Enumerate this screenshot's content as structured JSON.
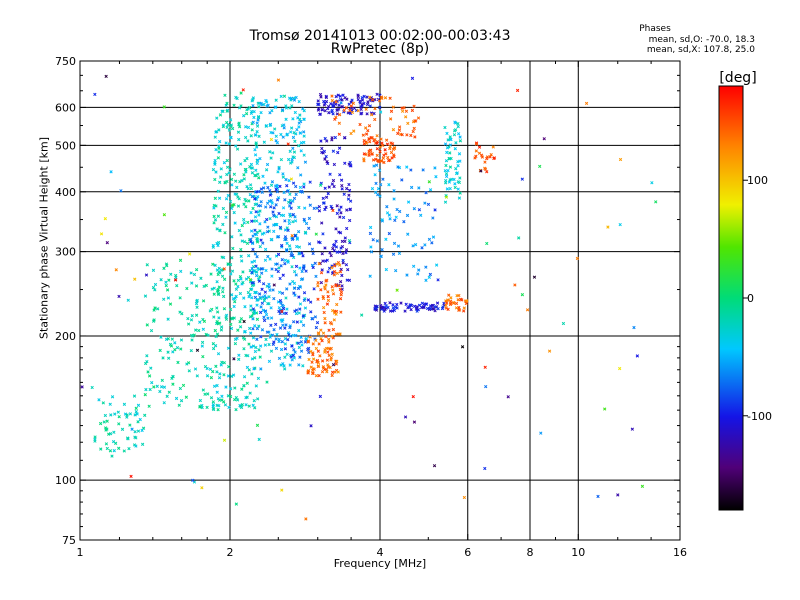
{
  "header": {
    "title": "Tromsø 20141013 00:02:00-00:03:43",
    "subtitle": "RwPretec (8p)"
  },
  "stats": {
    "title": "Phases",
    "line_o": "mean, sd,O: -70.0, 18.3",
    "line_x": "mean, sd,X: 107.8, 25.0"
  },
  "colorbar": {
    "title": "[deg]",
    "ticks": [
      {
        "label": "100",
        "value": 100
      },
      {
        "label": "0",
        "value": 0
      },
      {
        "label": "-100",
        "value": -100
      }
    ],
    "range": [
      -180,
      180
    ]
  },
  "chart_data": {
    "type": "scatter",
    "xlabel": "Frequency [MHz]",
    "ylabel": "Stationary phase Virtual Height [km]",
    "x_scale": "log",
    "y_scale": "log",
    "xlim": [
      1,
      16
    ],
    "ylim": [
      75,
      750
    ],
    "x_ticks": [
      "1",
      "2",
      "4",
      "6",
      "8",
      "10",
      "16"
    ],
    "y_ticks": [
      "75",
      "100",
      "200",
      "300",
      "400",
      "500",
      "600",
      "750"
    ],
    "grid": true,
    "color_encodes": "phase [deg]",
    "clusters": [
      {
        "name": "low-freq trace",
        "x_range": [
          1.07,
          1.35
        ],
        "y_range": [
          112,
          150
        ],
        "phase": -20,
        "count": 60
      },
      {
        "name": "rising E/F trace",
        "x_range": [
          1.35,
          1.9
        ],
        "y_range": [
          140,
          290
        ],
        "phase": -15,
        "count": 160
      },
      {
        "name": "F trace main",
        "x_range": [
          1.85,
          2.3
        ],
        "y_range": [
          140,
          640
        ],
        "phase": -20,
        "count": 360
      },
      {
        "name": "F trace dense",
        "x_range": [
          2.2,
          2.85
        ],
        "y_range": [
          170,
          640
        ],
        "phase": -40,
        "count": 330
      },
      {
        "name": "F trace blue",
        "x_range": [
          2.2,
          3.0
        ],
        "y_range": [
          180,
          420
        ],
        "phase": -80,
        "count": 200
      },
      {
        "name": "mid dark blue",
        "x_range": [
          3.0,
          3.5
        ],
        "y_range": [
          250,
          520
        ],
        "phase": -110,
        "count": 120
      },
      {
        "name": "orange trace low",
        "x_range": [
          2.85,
          3.3
        ],
        "y_range": [
          165,
          200
        ],
        "phase": 140,
        "count": 70
      },
      {
        "name": "orange trace rising",
        "x_range": [
          3.0,
          3.35
        ],
        "y_range": [
          200,
          290
        ],
        "phase": 140,
        "count": 60
      },
      {
        "name": "upper band blue",
        "x_range": [
          3.0,
          4.0
        ],
        "y_range": [
          580,
          640
        ],
        "phase": -110,
        "count": 90
      },
      {
        "name": "orange F2 cusp",
        "x_range": [
          3.7,
          4.3
        ],
        "y_range": [
          460,
          520
        ],
        "phase": 150,
        "count": 60
      },
      {
        "name": "orange upper",
        "x_range": [
          3.2,
          4.8
        ],
        "y_range": [
          520,
          640
        ],
        "phase": 140,
        "count": 60
      },
      {
        "name": "sporadic mid",
        "x_range": [
          3.8,
          5.2
        ],
        "y_range": [
          260,
          460
        ],
        "phase": -60,
        "count": 80
      },
      {
        "name": "horizontal blue 230",
        "x_range": [
          3.9,
          5.4
        ],
        "y_range": [
          225,
          235
        ],
        "phase": -105,
        "count": 70
      },
      {
        "name": "orange 230",
        "x_range": [
          5.4,
          6.0
        ],
        "y_range": [
          225,
          245
        ],
        "phase": 140,
        "count": 30
      },
      {
        "name": "cyan vertical 5.6",
        "x_range": [
          5.4,
          5.8
        ],
        "y_range": [
          380,
          560
        ],
        "phase": -30,
        "count": 60
      },
      {
        "name": "orange 6.5",
        "x_range": [
          6.2,
          6.8
        ],
        "y_range": [
          440,
          510
        ],
        "phase": 150,
        "count": 20
      },
      {
        "name": "sparse scatter",
        "x_range": [
          1.0,
          15.0
        ],
        "y_range": [
          80,
          700
        ],
        "phase": 0,
        "count": 110
      }
    ]
  }
}
